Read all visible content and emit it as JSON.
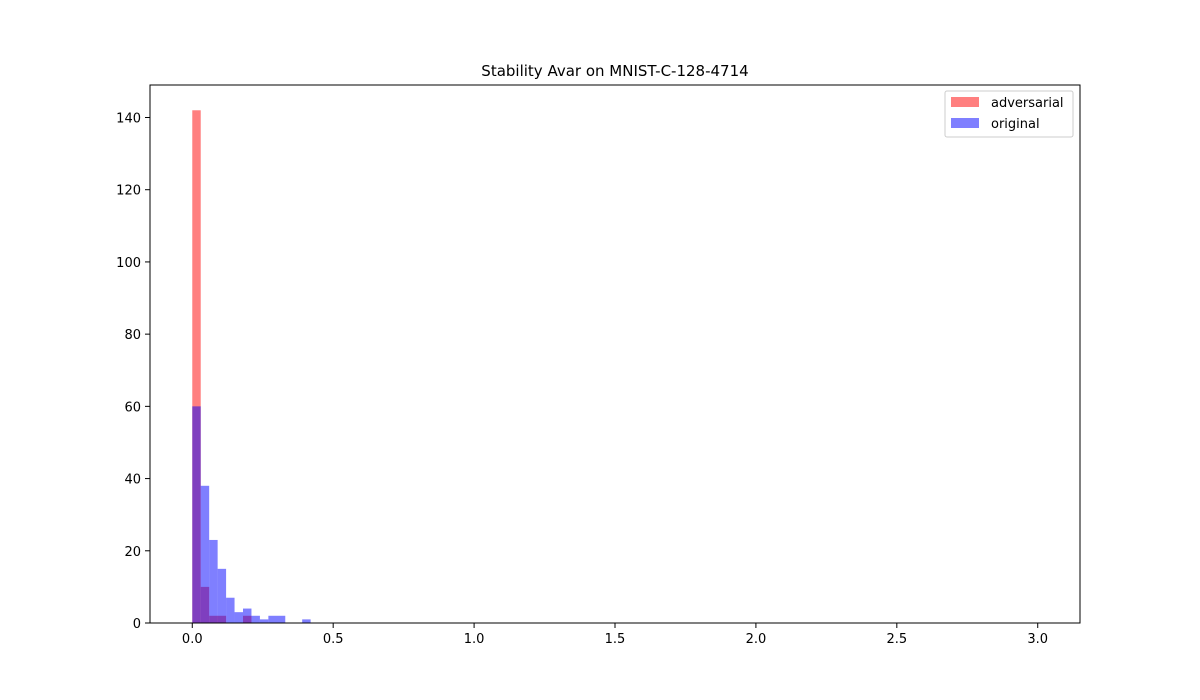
{
  "chart_data": {
    "type": "bar",
    "title": "Stability Avar on MNIST-C-128-4714",
    "xlabel": "",
    "ylabel": "",
    "xlim": [
      -0.15,
      3.15
    ],
    "ylim": [
      0,
      149
    ],
    "xticks": [
      "0.0",
      "0.5",
      "1.0",
      "1.5",
      "2.0",
      "2.5",
      "3.0"
    ],
    "yticks": [
      "0",
      "20",
      "40",
      "60",
      "80",
      "100",
      "120",
      "140"
    ],
    "grid": false,
    "legend_placement": "top-right",
    "series": [
      {
        "name": "adversarial",
        "color": "#ff0000",
        "opacity": 0.5,
        "bins": [
          {
            "x0": 0.0,
            "x1": 0.03,
            "count": 142
          },
          {
            "x0": 0.03,
            "x1": 0.06,
            "count": 10
          },
          {
            "x0": 0.06,
            "x1": 0.12,
            "count": 2
          },
          {
            "x0": 0.18,
            "x1": 0.21,
            "count": 2
          }
        ]
      },
      {
        "name": "original",
        "color": "#0000ff",
        "opacity": 0.5,
        "bins": [
          {
            "x0": 0.0,
            "x1": 0.03,
            "count": 60
          },
          {
            "x0": 0.03,
            "x1": 0.06,
            "count": 38
          },
          {
            "x0": 0.06,
            "x1": 0.09,
            "count": 23
          },
          {
            "x0": 0.09,
            "x1": 0.12,
            "count": 15
          },
          {
            "x0": 0.12,
            "x1": 0.15,
            "count": 7
          },
          {
            "x0": 0.15,
            "x1": 0.18,
            "count": 3
          },
          {
            "x0": 0.18,
            "x1": 0.21,
            "count": 4
          },
          {
            "x0": 0.21,
            "x1": 0.24,
            "count": 2
          },
          {
            "x0": 0.24,
            "x1": 0.27,
            "count": 1
          },
          {
            "x0": 0.27,
            "x1": 0.33,
            "count": 2
          },
          {
            "x0": 0.39,
            "x1": 0.42,
            "count": 1
          }
        ]
      }
    ]
  }
}
